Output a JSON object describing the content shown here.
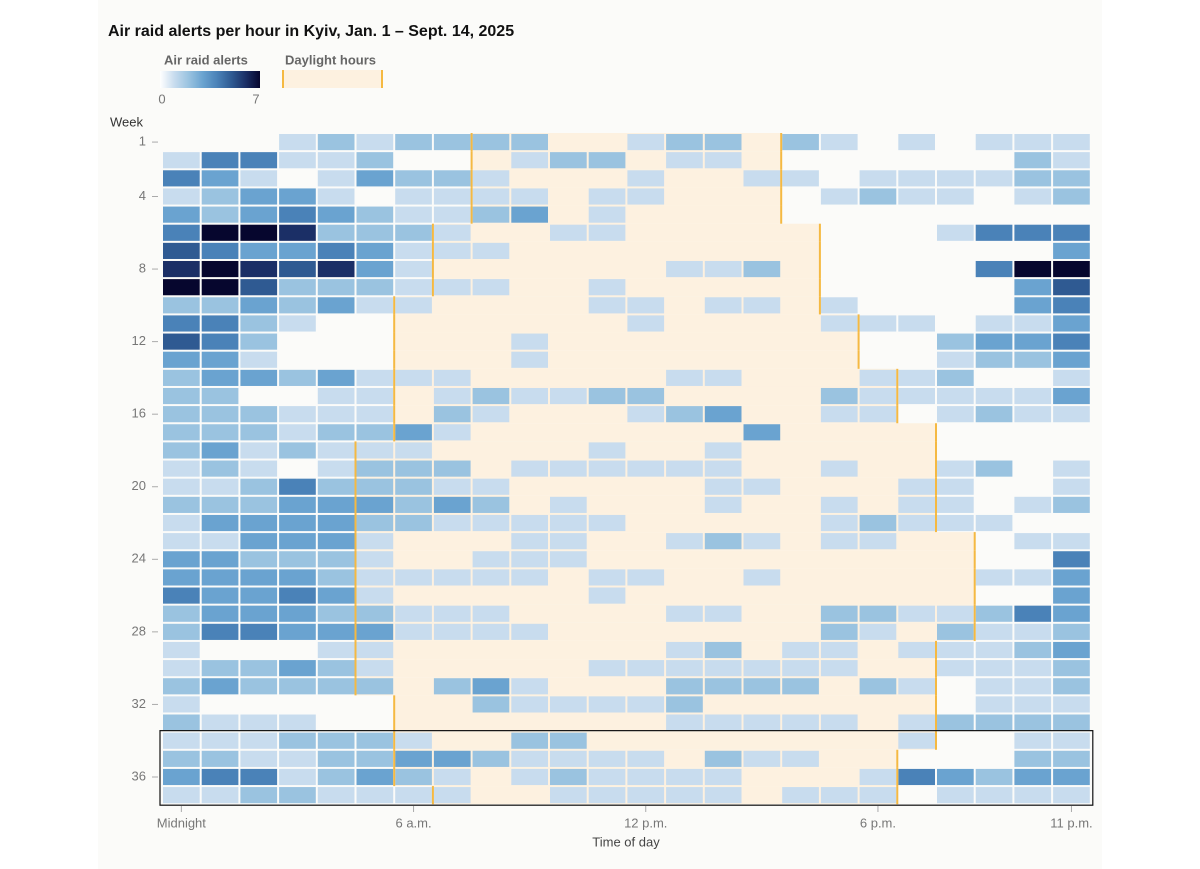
{
  "chart_data": {
    "type": "heatmap",
    "title": "Air raid alerts per hour in Kyiv, Jan. 1 – Sept. 14, 2025",
    "xlabel": "Time of day",
    "ylabel": "Week",
    "legend": {
      "color_title": "Air raid alerts",
      "color_min": 0,
      "color_max": 7,
      "daylight_label": "Daylight hours"
    },
    "colorscale": [
      "#ffffff",
      "#c8dcee",
      "#9ac3e0",
      "#6aa3d0",
      "#4a82b8",
      "#2f5a92",
      "#1b2f66",
      "#06062e"
    ],
    "daylight_color": "#fdf1e0",
    "daylight_line_color": "#f5b942",
    "xlim": [
      -0.5,
      23.5
    ],
    "xticks": [
      {
        "value": 0,
        "label": "Midnight"
      },
      {
        "value": 6,
        "label": "6 a.m."
      },
      {
        "value": 12,
        "label": "12 p.m."
      },
      {
        "value": 18,
        "label": "6 p.m."
      },
      {
        "value": 23,
        "label": "11 p.m."
      }
    ],
    "ylim": [
      0.5,
      37.5
    ],
    "yticks": [
      1,
      4,
      8,
      12,
      16,
      20,
      24,
      28,
      32,
      36
    ],
    "x": [
      0,
      1,
      2,
      3,
      4,
      5,
      6,
      7,
      8,
      9,
      10,
      11,
      12,
      13,
      14,
      15,
      16,
      17,
      18,
      19,
      20,
      21,
      22,
      23
    ],
    "y": [
      1,
      2,
      3,
      4,
      5,
      6,
      7,
      8,
      9,
      10,
      11,
      12,
      13,
      14,
      15,
      16,
      17,
      18,
      19,
      20,
      21,
      22,
      23,
      24,
      25,
      26,
      27,
      28,
      29,
      30,
      31,
      32,
      33,
      34,
      35,
      36,
      37
    ],
    "daylight": [
      [
        7.5,
        15.5
      ],
      [
        7.5,
        15.5
      ],
      [
        7.5,
        15.5
      ],
      [
        7.5,
        15.5
      ],
      [
        7.5,
        15.5
      ],
      [
        6.5,
        16.5
      ],
      [
        6.5,
        16.5
      ],
      [
        6.5,
        16.5
      ],
      [
        6.5,
        16.5
      ],
      [
        5.5,
        16.5
      ],
      [
        5.5,
        17.5
      ],
      [
        5.5,
        17.5
      ],
      [
        5.5,
        17.5
      ],
      [
        5.5,
        18.5
      ],
      [
        5.5,
        18.5
      ],
      [
        5.5,
        18.5
      ],
      [
        5.5,
        19.5
      ],
      [
        4.5,
        19.5
      ],
      [
        4.5,
        19.5
      ],
      [
        4.5,
        19.5
      ],
      [
        4.5,
        19.5
      ],
      [
        4.5,
        19.5
      ],
      [
        4.5,
        20.5
      ],
      [
        4.5,
        20.5
      ],
      [
        4.5,
        20.5
      ],
      [
        4.5,
        20.5
      ],
      [
        4.5,
        20.5
      ],
      [
        4.5,
        20.5
      ],
      [
        4.5,
        19.5
      ],
      [
        4.5,
        19.5
      ],
      [
        4.5,
        19.5
      ],
      [
        5.5,
        19.5
      ],
      [
        5.5,
        19.5
      ],
      [
        5.5,
        19.5
      ],
      [
        5.5,
        18.5
      ],
      [
        5.5,
        18.5
      ],
      [
        6.5,
        18.5
      ]
    ],
    "values": [
      [
        0,
        0,
        0,
        1,
        2,
        1,
        2,
        2,
        2,
        2,
        0,
        0,
        1,
        2,
        2,
        0,
        2,
        1,
        0,
        1,
        0,
        1,
        1,
        1
      ],
      [
        1,
        4,
        4,
        1,
        1,
        2,
        0,
        0,
        0,
        1,
        2,
        2,
        0,
        1,
        1,
        0,
        0,
        0,
        0,
        0,
        0,
        0,
        2,
        1
      ],
      [
        4,
        3,
        1,
        0,
        1,
        3,
        2,
        2,
        1,
        0,
        0,
        0,
        1,
        0,
        0,
        1,
        1,
        0,
        1,
        1,
        1,
        1,
        2,
        2
      ],
      [
        1,
        2,
        3,
        3,
        1,
        0,
        1,
        1,
        1,
        1,
        0,
        1,
        1,
        0,
        0,
        0,
        0,
        1,
        2,
        1,
        1,
        0,
        1,
        2
      ],
      [
        3,
        2,
        3,
        4,
        3,
        2,
        1,
        1,
        2,
        3,
        0,
        1,
        0,
        0,
        0,
        0,
        0,
        0,
        0,
        0,
        0,
        0,
        0,
        0
      ],
      [
        4,
        7,
        7,
        6,
        2,
        2,
        2,
        1,
        0,
        0,
        1,
        1,
        0,
        0,
        0,
        0,
        0,
        0,
        0,
        0,
        1,
        4,
        4,
        4
      ],
      [
        5,
        4,
        3,
        3,
        4,
        3,
        1,
        1,
        1,
        0,
        0,
        0,
        0,
        0,
        0,
        0,
        0,
        0,
        0,
        0,
        0,
        0,
        0,
        3
      ],
      [
        6,
        7,
        6,
        5,
        6,
        3,
        1,
        0,
        0,
        0,
        0,
        0,
        0,
        1,
        1,
        2,
        0,
        0,
        0,
        0,
        0,
        4,
        7,
        7
      ],
      [
        7,
        7,
        5,
        2,
        2,
        2,
        1,
        1,
        1,
        0,
        0,
        1,
        0,
        0,
        0,
        0,
        0,
        0,
        0,
        0,
        0,
        0,
        3,
        5
      ],
      [
        2,
        2,
        3,
        2,
        3,
        1,
        1,
        0,
        0,
        0,
        0,
        1,
        1,
        0,
        1,
        1,
        0,
        1,
        0,
        0,
        0,
        0,
        3,
        4
      ],
      [
        4,
        4,
        2,
        1,
        0,
        0,
        0,
        0,
        0,
        0,
        0,
        0,
        1,
        0,
        0,
        0,
        0,
        1,
        1,
        1,
        0,
        1,
        1,
        3
      ],
      [
        5,
        4,
        2,
        0,
        0,
        0,
        0,
        0,
        0,
        1,
        0,
        0,
        0,
        0,
        0,
        0,
        0,
        0,
        0,
        0,
        2,
        3,
        3,
        4
      ],
      [
        3,
        3,
        1,
        0,
        0,
        0,
        0,
        0,
        0,
        1,
        0,
        0,
        0,
        0,
        0,
        0,
        0,
        0,
        0,
        0,
        1,
        2,
        2,
        3
      ],
      [
        2,
        3,
        3,
        2,
        3,
        1,
        1,
        1,
        0,
        0,
        0,
        0,
        0,
        1,
        1,
        0,
        0,
        0,
        1,
        1,
        2,
        0,
        0,
        1
      ],
      [
        2,
        2,
        0,
        0,
        1,
        1,
        0,
        1,
        2,
        1,
        1,
        2,
        2,
        0,
        0,
        0,
        0,
        2,
        1,
        1,
        1,
        1,
        1,
        3
      ],
      [
        2,
        2,
        2,
        1,
        1,
        1,
        0,
        2,
        1,
        0,
        0,
        0,
        1,
        2,
        3,
        0,
        0,
        1,
        1,
        0,
        1,
        2,
        1,
        1
      ],
      [
        2,
        2,
        2,
        1,
        2,
        2,
        3,
        1,
        0,
        0,
        0,
        0,
        0,
        0,
        0,
        3,
        0,
        0,
        0,
        0,
        0,
        0,
        0,
        0
      ],
      [
        2,
        3,
        1,
        2,
        1,
        1,
        1,
        0,
        0,
        0,
        0,
        1,
        0,
        0,
        1,
        0,
        0,
        0,
        0,
        0,
        0,
        0,
        0,
        0
      ],
      [
        1,
        2,
        1,
        0,
        1,
        2,
        2,
        2,
        0,
        1,
        1,
        1,
        1,
        1,
        1,
        0,
        0,
        1,
        0,
        0,
        1,
        2,
        0,
        1
      ],
      [
        1,
        1,
        2,
        4,
        2,
        2,
        2,
        1,
        1,
        0,
        0,
        0,
        0,
        0,
        1,
        1,
        0,
        0,
        0,
        1,
        1,
        0,
        0,
        1
      ],
      [
        2,
        2,
        2,
        3,
        3,
        3,
        2,
        3,
        2,
        0,
        1,
        0,
        0,
        0,
        1,
        0,
        0,
        1,
        0,
        1,
        1,
        0,
        1,
        2
      ],
      [
        1,
        3,
        3,
        3,
        3,
        2,
        2,
        1,
        1,
        1,
        1,
        1,
        0,
        0,
        0,
        0,
        0,
        1,
        2,
        1,
        1,
        1,
        0,
        0
      ],
      [
        1,
        1,
        3,
        3,
        3,
        1,
        0,
        0,
        0,
        1,
        1,
        0,
        0,
        1,
        2,
        1,
        0,
        1,
        1,
        0,
        0,
        0,
        1,
        1
      ],
      [
        3,
        3,
        2,
        2,
        2,
        1,
        0,
        0,
        1,
        1,
        1,
        0,
        0,
        0,
        0,
        0,
        0,
        0,
        0,
        0,
        0,
        0,
        0,
        4
      ],
      [
        3,
        3,
        3,
        3,
        2,
        1,
        1,
        1,
        1,
        1,
        0,
        1,
        1,
        0,
        0,
        1,
        0,
        0,
        0,
        0,
        0,
        1,
        1,
        3
      ],
      [
        4,
        3,
        3,
        4,
        3,
        1,
        0,
        0,
        0,
        0,
        0,
        1,
        0,
        0,
        0,
        0,
        0,
        0,
        0,
        0,
        0,
        0,
        0,
        3
      ],
      [
        2,
        3,
        3,
        3,
        2,
        2,
        1,
        1,
        1,
        0,
        0,
        0,
        0,
        1,
        1,
        0,
        0,
        2,
        2,
        1,
        1,
        2,
        4,
        3
      ],
      [
        2,
        4,
        4,
        3,
        3,
        3,
        1,
        1,
        1,
        1,
        0,
        0,
        0,
        0,
        0,
        0,
        0,
        2,
        1,
        0,
        2,
        1,
        1,
        2
      ],
      [
        1,
        0,
        0,
        0,
        1,
        1,
        0,
        0,
        0,
        0,
        0,
        0,
        0,
        1,
        2,
        0,
        1,
        1,
        0,
        1,
        1,
        1,
        2,
        3
      ],
      [
        1,
        2,
        2,
        3,
        2,
        1,
        0,
        0,
        0,
        0,
        0,
        1,
        1,
        1,
        1,
        1,
        1,
        1,
        0,
        0,
        1,
        1,
        1,
        2
      ],
      [
        2,
        3,
        2,
        2,
        2,
        2,
        0,
        2,
        3,
        1,
        0,
        0,
        0,
        2,
        2,
        2,
        2,
        0,
        2,
        1,
        0,
        1,
        1,
        2
      ],
      [
        1,
        0,
        0,
        0,
        0,
        0,
        0,
        0,
        2,
        1,
        1,
        1,
        1,
        2,
        0,
        0,
        0,
        0,
        0,
        0,
        0,
        1,
        1,
        1
      ],
      [
        2,
        1,
        1,
        1,
        0,
        0,
        0,
        0,
        0,
        0,
        0,
        0,
        0,
        1,
        1,
        1,
        1,
        1,
        0,
        1,
        2,
        2,
        2,
        2
      ],
      [
        1,
        1,
        1,
        2,
        2,
        2,
        1,
        0,
        0,
        2,
        2,
        0,
        0,
        0,
        0,
        0,
        0,
        0,
        0,
        1,
        0,
        0,
        1,
        1
      ],
      [
        2,
        2,
        1,
        1,
        2,
        2,
        3,
        3,
        2,
        1,
        1,
        1,
        1,
        0,
        2,
        1,
        1,
        0,
        0,
        0,
        0,
        0,
        2,
        2
      ],
      [
        3,
        4,
        4,
        1,
        2,
        3,
        2,
        1,
        0,
        1,
        2,
        1,
        1,
        1,
        1,
        0,
        0,
        0,
        1,
        4,
        3,
        2,
        3,
        3
      ],
      [
        1,
        1,
        2,
        2,
        1,
        1,
        1,
        1,
        0,
        0,
        1,
        1,
        1,
        1,
        1,
        0,
        1,
        1,
        1,
        0,
        1,
        1,
        1,
        1
      ]
    ]
  }
}
